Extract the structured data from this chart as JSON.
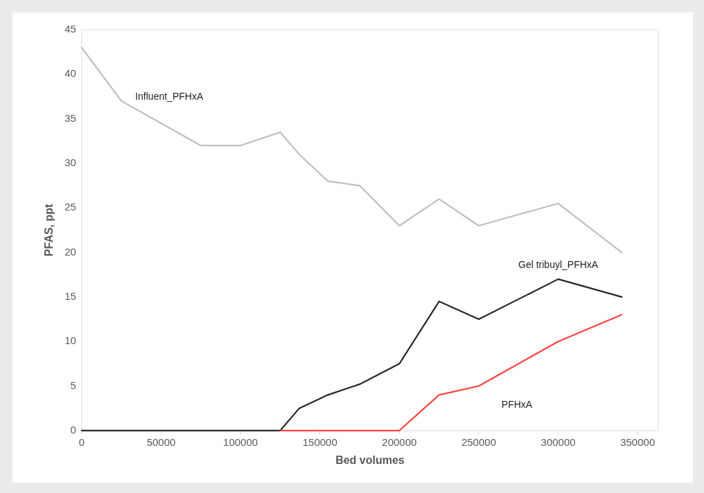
{
  "chart_data": {
    "type": "line",
    "xlabel": "Bed volumes",
    "ylabel": "PFAS, ppt",
    "xlim": [
      0,
      363000
    ],
    "xticks": [
      0,
      50000,
      100000,
      150000,
      200000,
      250000,
      300000,
      350000
    ],
    "ylim": [
      0,
      45
    ],
    "yticks": [
      0,
      5,
      10,
      15,
      20,
      25,
      30,
      35,
      40,
      45
    ],
    "grid": false,
    "legend": false,
    "marker": "none",
    "line_style": "solid",
    "series": [
      {
        "name": "Influent_PFHxA",
        "color": "#bfbfbf",
        "x": [
          0,
          25000,
          50000,
          75000,
          100000,
          125000,
          137000,
          155000,
          175000,
          200000,
          225000,
          250000,
          300000,
          340000
        ],
        "values": [
          43,
          37,
          34.5,
          32,
          32,
          33.5,
          31,
          28,
          27.5,
          23,
          26,
          23,
          25.5,
          20
        ]
      },
      {
        "name": "Gel tribuyl_PFHxA",
        "color": "#262626",
        "x": [
          0,
          125000,
          137000,
          155000,
          175000,
          200000,
          225000,
          250000,
          300000,
          340000
        ],
        "values": [
          0,
          0,
          2.5,
          4,
          5.2,
          7.5,
          14.5,
          12.5,
          17,
          15
        ]
      },
      {
        "name": "PFHxA",
        "color": "#ff4040",
        "x": [
          125000,
          200000,
          225000,
          250000,
          300000,
          340000
        ],
        "values": [
          0,
          0,
          4,
          5,
          10,
          13
        ]
      }
    ]
  }
}
